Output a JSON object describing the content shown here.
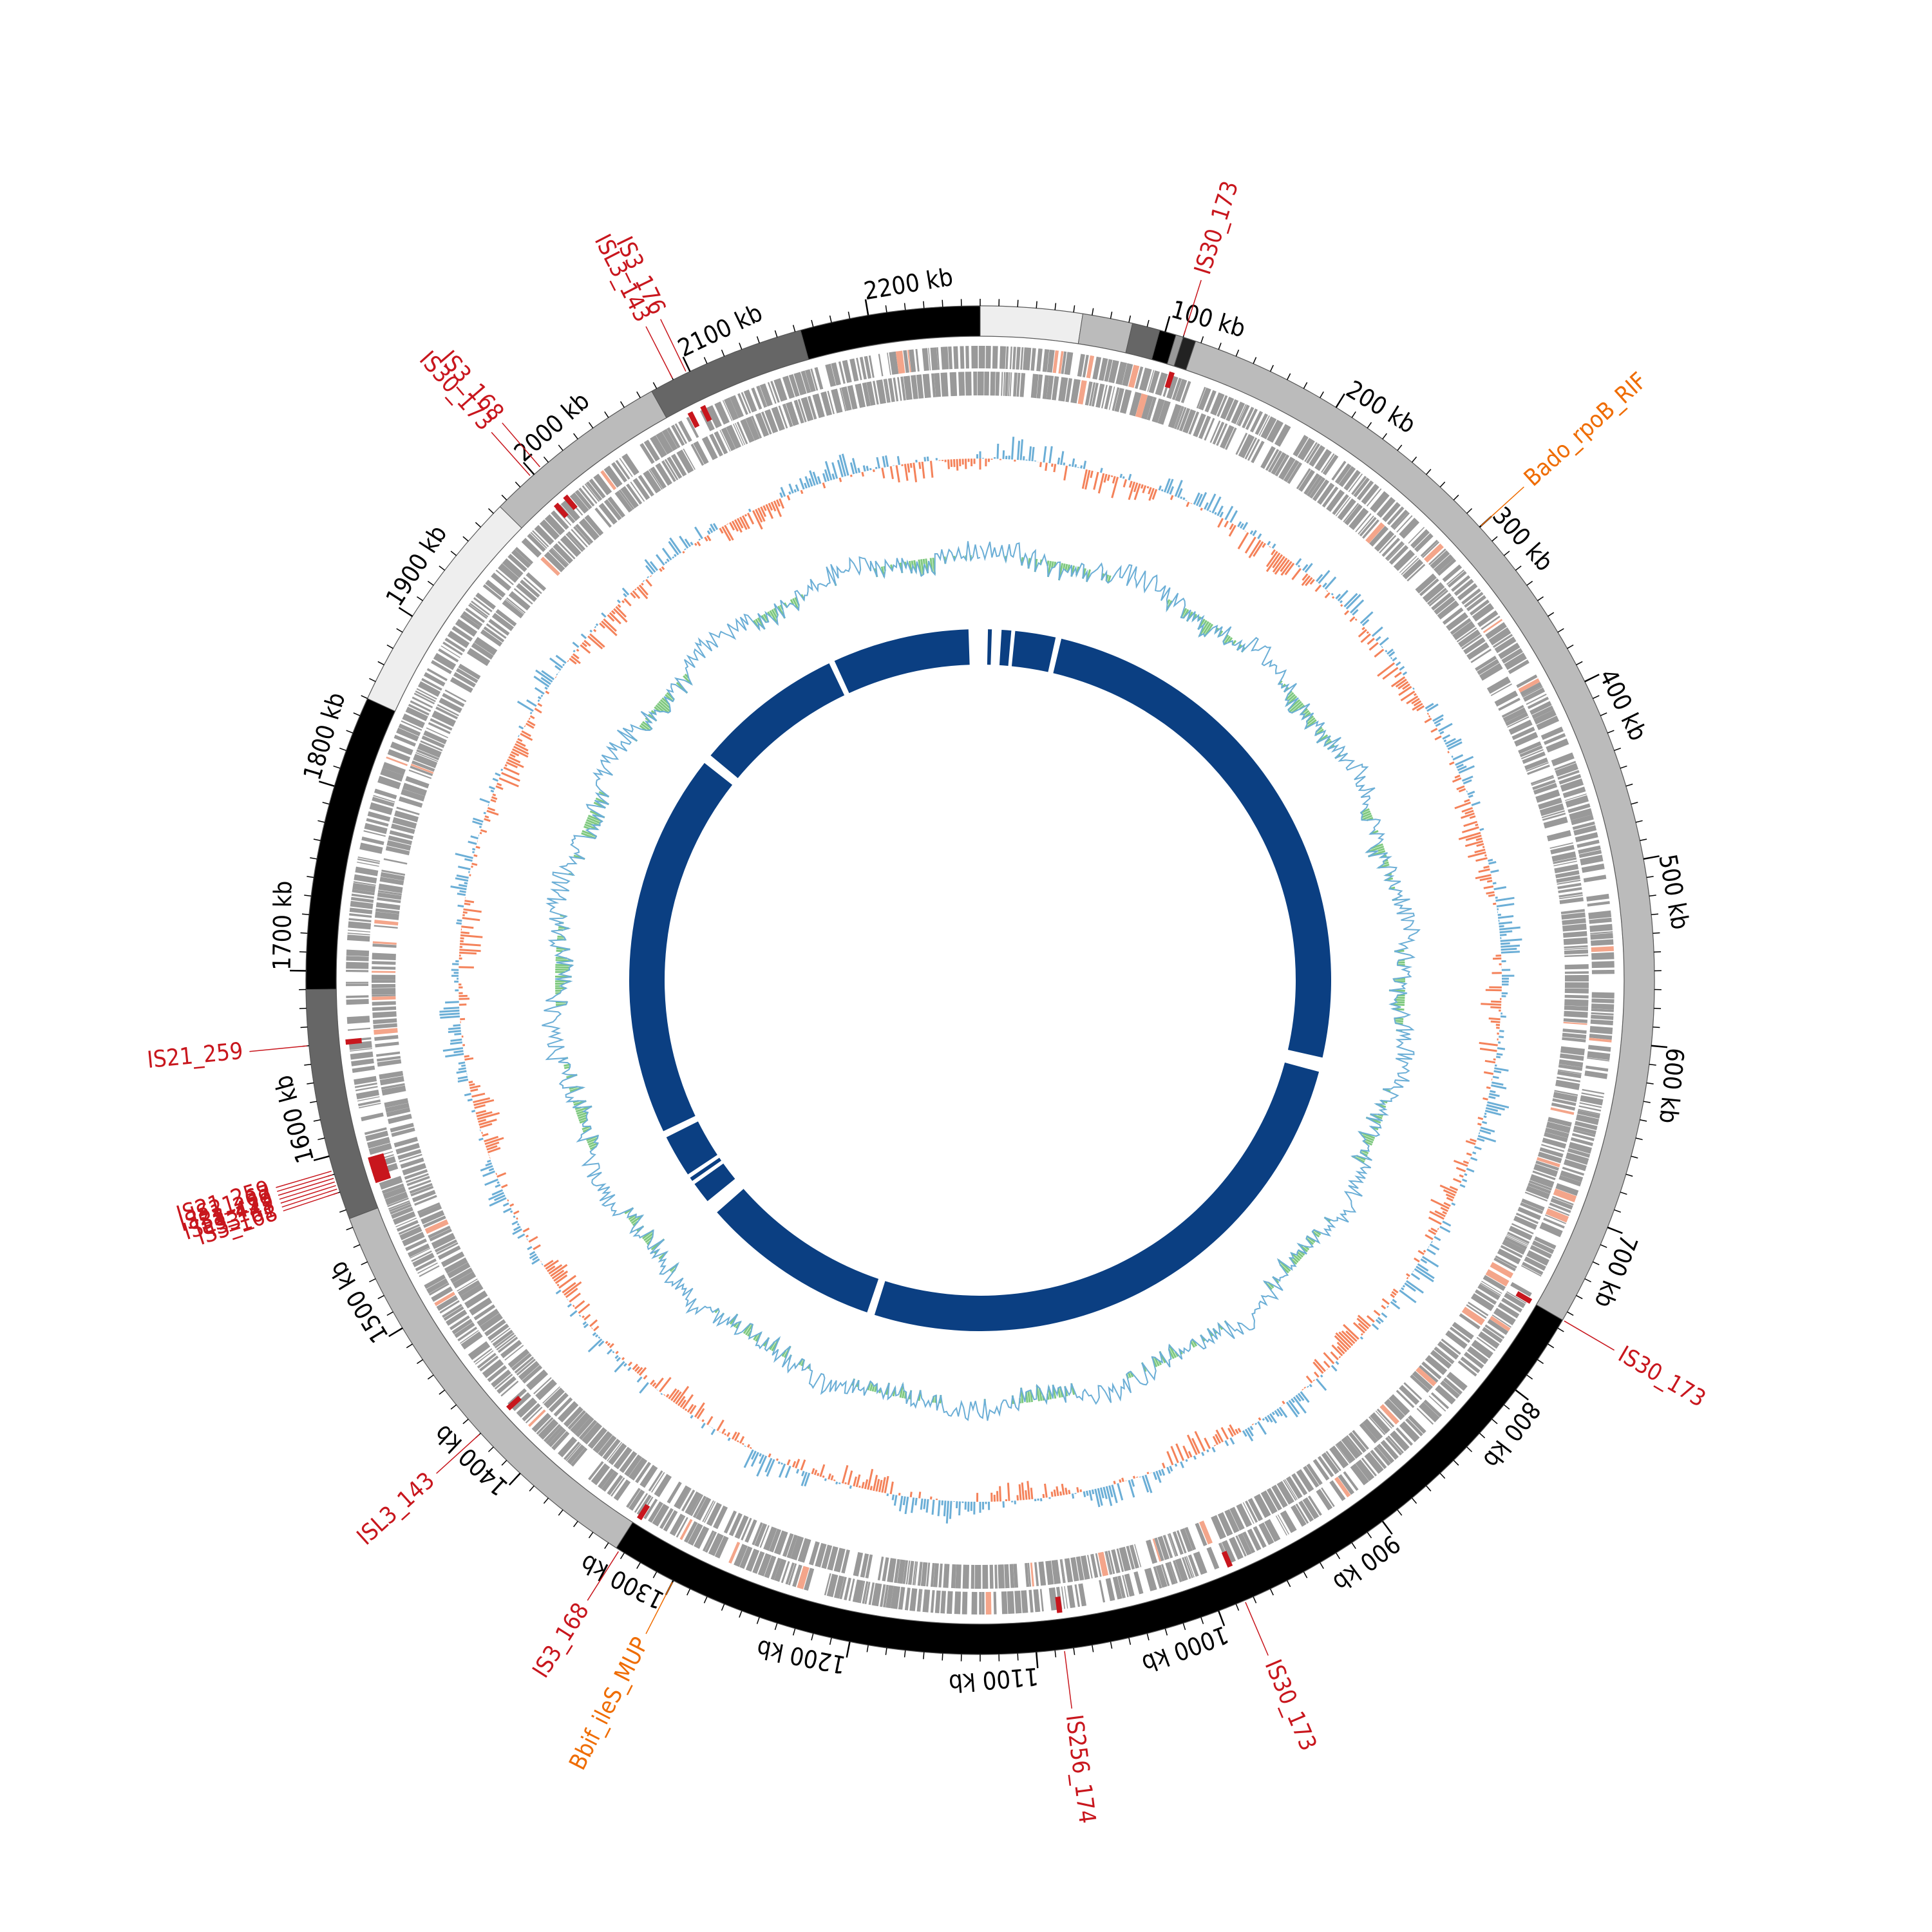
{
  "genome": {
    "length_kb": 2260
  },
  "colors": {
    "text": "#000000",
    "is_element": "#c8161d",
    "resistance": "#ef6c00",
    "gc_skew_pos": "#6baed6",
    "gc_skew_neg": "#f4825a",
    "gc_content": "#7fc97f",
    "cds": "#999999",
    "homology": "#0b3f82"
  },
  "ticks": [
    {
      "pos": 100,
      "label": "100 kb"
    },
    {
      "pos": 200,
      "label": "200 kb"
    },
    {
      "pos": 300,
      "label": "300 kb"
    },
    {
      "pos": 400,
      "label": "400 kb"
    },
    {
      "pos": 500,
      "label": "500 kb"
    },
    {
      "pos": 600,
      "label": "600 kb"
    },
    {
      "pos": 700,
      "label": "700 kb"
    },
    {
      "pos": 800,
      "label": "800 kb"
    },
    {
      "pos": 900,
      "label": "900 kb"
    },
    {
      "pos": 1000,
      "label": "1000 kb"
    },
    {
      "pos": 1100,
      "label": "1100 kb"
    },
    {
      "pos": 1200,
      "label": "1200 kb"
    },
    {
      "pos": 1300,
      "label": "1300 kb"
    },
    {
      "pos": 1400,
      "label": "1400 kb"
    },
    {
      "pos": 1500,
      "label": "1500 kb"
    },
    {
      "pos": 1600,
      "label": "1600 kb"
    },
    {
      "pos": 1700,
      "label": "1700 kb"
    },
    {
      "pos": 1800,
      "label": "1800 kb"
    },
    {
      "pos": 1900,
      "label": "1900 kb"
    },
    {
      "pos": 2000,
      "label": "2000 kb"
    },
    {
      "pos": 2100,
      "label": "2100 kb"
    },
    {
      "pos": 2200,
      "label": "2200 kb"
    }
  ],
  "contigs": [
    {
      "start": 0,
      "end": 55,
      "color": "#eeeeee"
    },
    {
      "start": 55,
      "end": 82,
      "color": "#bbbbbb"
    },
    {
      "start": 82,
      "end": 97,
      "color": "#666666"
    },
    {
      "start": 97,
      "end": 106,
      "color": "#000000"
    },
    {
      "start": 106,
      "end": 110,
      "color": "#999999"
    },
    {
      "start": 110,
      "end": 117,
      "color": "#222222"
    },
    {
      "start": 117,
      "end": 755,
      "color": "#bbbbbb"
    },
    {
      "start": 755,
      "end": 1335,
      "color": "#000000"
    },
    {
      "start": 1335,
      "end": 1565,
      "color": "#bbbbbb"
    },
    {
      "start": 1565,
      "end": 1690,
      "color": "#666666"
    },
    {
      "start": 1690,
      "end": 1850,
      "color": "#000000"
    },
    {
      "start": 1850,
      "end": 1975,
      "color": "#eeeeee"
    },
    {
      "start": 1975,
      "end": 2077,
      "color": "#bbbbbb"
    },
    {
      "start": 2077,
      "end": 2163,
      "color": "#666666"
    },
    {
      "start": 2163,
      "end": 2260,
      "color": "#000000"
    }
  ],
  "homology_blocks": [
    {
      "start": 8,
      "end": 12
    },
    {
      "start": 22,
      "end": 32
    },
    {
      "start": 36,
      "end": 78
    },
    {
      "start": 84,
      "end": 645
    },
    {
      "start": 660,
      "end": 1240
    },
    {
      "start": 1248,
      "end": 1435
    },
    {
      "start": 1450,
      "end": 1472
    },
    {
      "start": 1476,
      "end": 1480
    },
    {
      "start": 1484,
      "end": 1528
    },
    {
      "start": 1535,
      "end": 1935
    },
    {
      "start": 1945,
      "end": 2100
    },
    {
      "start": 2106,
      "end": 2248
    }
  ],
  "annotations": [
    {
      "pos": 110,
      "label": "IS30_173",
      "type": "is"
    },
    {
      "pos": 300,
      "label": "Bado_rpoB_RIF",
      "type": "res"
    },
    {
      "pos": 755,
      "label": "IS30_173",
      "type": "is"
    },
    {
      "pos": 985,
      "label": "IS30_173",
      "type": "is"
    },
    {
      "pos": 1085,
      "label": "IS256_174",
      "type": "is"
    },
    {
      "pos": 1300,
      "label": "Bbif_ileS_MUP",
      "type": "res"
    },
    {
      "pos": 1333,
      "label": "IS3_168",
      "type": "is"
    },
    {
      "pos": 1430,
      "label": "ISL3_143",
      "type": "is"
    },
    {
      "pos": 1580,
      "label": "IS3_168",
      "type": "is"
    },
    {
      "pos": 1582,
      "label": "IS3_61",
      "type": "is"
    },
    {
      "pos": 1584,
      "label": "ISL3_143",
      "type": "is"
    },
    {
      "pos": 1586,
      "label": "IS3_479",
      "type": "is"
    },
    {
      "pos": 1588,
      "label": "IS21_259",
      "type": "is"
    },
    {
      "pos": 1590,
      "label": "IS21_67",
      "type": "is"
    },
    {
      "pos": 1592,
      "label": "IS21_259",
      "type": "is"
    },
    {
      "pos": 1660,
      "label": "IS21_259",
      "type": "is"
    },
    {
      "pos": 1998,
      "label": "IS30_173",
      "type": "is"
    },
    {
      "pos": 2005,
      "label": "IS3_168",
      "type": "is"
    },
    {
      "pos": 2090,
      "label": "ISL3_143",
      "type": "is"
    },
    {
      "pos": 2098,
      "label": "IS3_176",
      "type": "is"
    }
  ]
}
